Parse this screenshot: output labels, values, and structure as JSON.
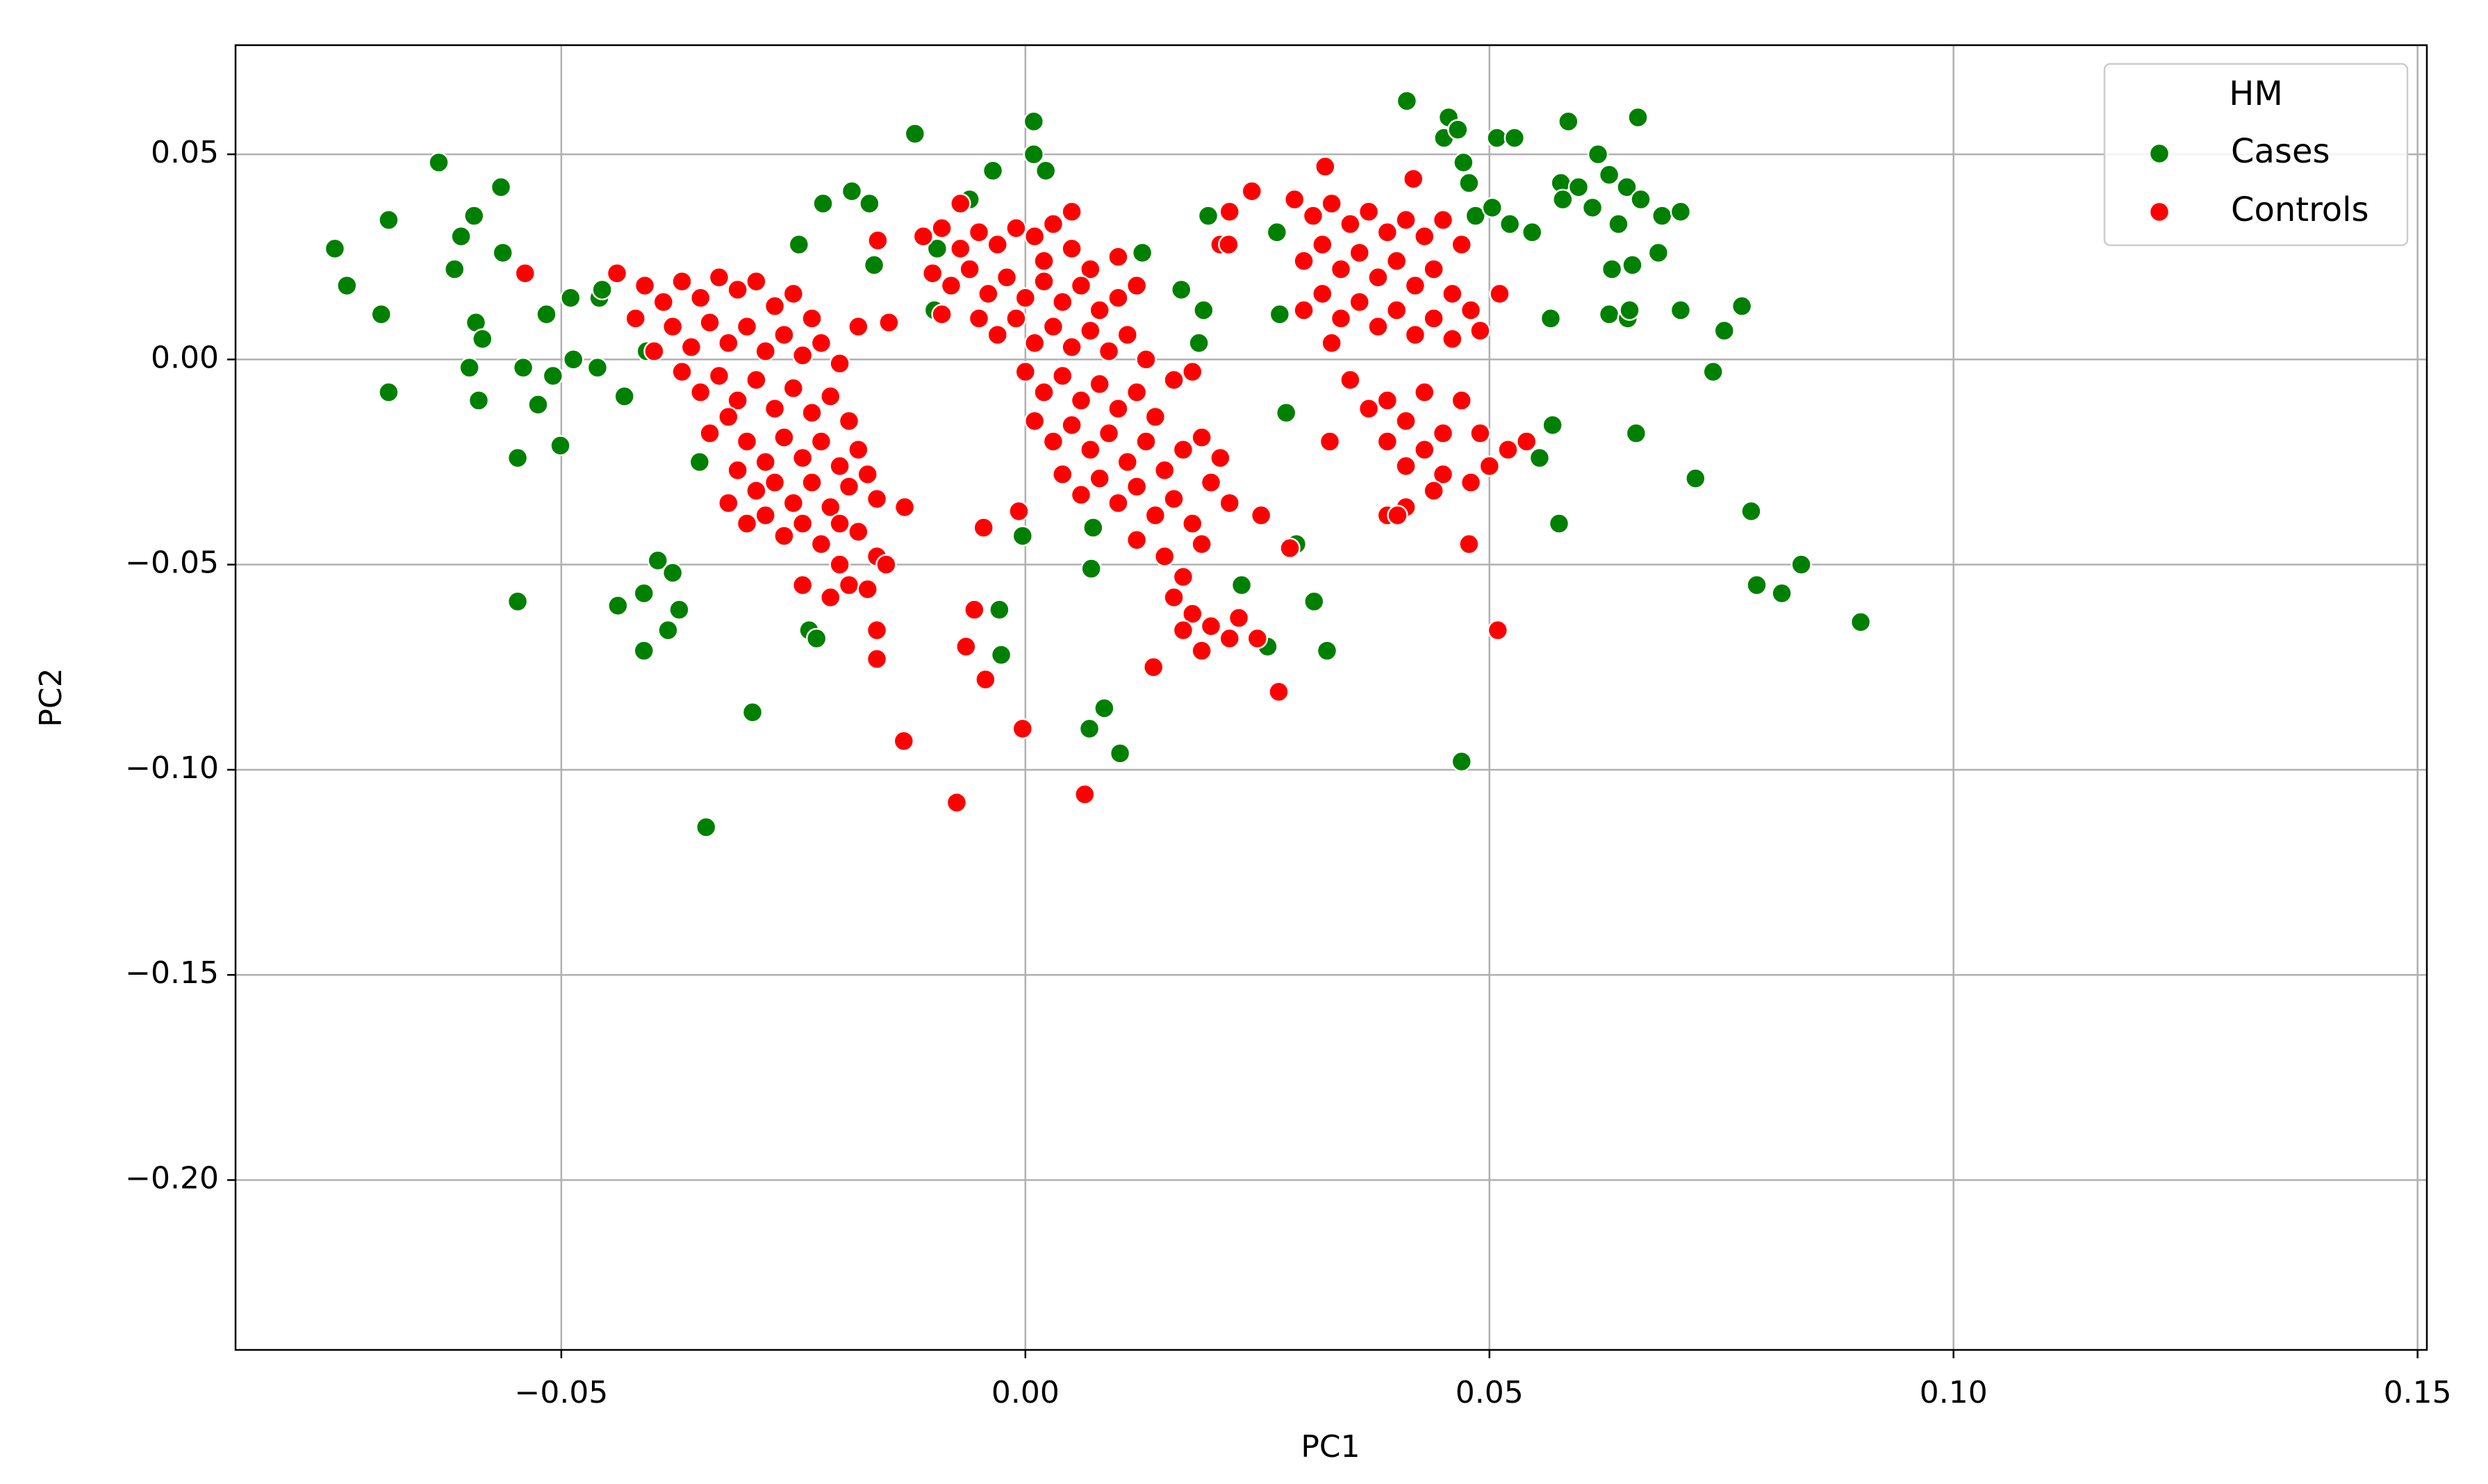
{
  "chart_data": {
    "type": "scatter",
    "x_label": "PC1",
    "y_label": "PC2",
    "xlim": [
      -0.0851,
      0.151
    ],
    "ylim": [
      -0.2414,
      0.0766
    ],
    "xticks": [
      {
        "value": -0.05,
        "label": "−0.05"
      },
      {
        "value": 0,
        "label": "0.00"
      },
      {
        "value": 0.05,
        "label": "0.05"
      },
      {
        "value": 0.1,
        "label": "0.10"
      },
      {
        "value": 0.15,
        "label": "0.15"
      }
    ],
    "yticks": [
      {
        "value": -0.2,
        "label": "−0.20"
      },
      {
        "value": -0.15,
        "label": "−0.15"
      },
      {
        "value": -0.1,
        "label": "−0.10"
      },
      {
        "value": -0.05,
        "label": "−0.05"
      },
      {
        "value": 0,
        "label": "0.00"
      },
      {
        "value": 0.05,
        "label": "0.05"
      }
    ],
    "grid": true,
    "legend_title": "HM",
    "legend_position": "upper-right",
    "series": [
      {
        "name": "Cases",
        "color": "#008000",
        "x": [
          -0.0744,
          -0.0731,
          -0.0694,
          -0.0686,
          -0.0686,
          -0.0632,
          -0.0615,
          -0.0608,
          -0.0594,
          -0.0599,
          -0.0589,
          -0.0592,
          -0.0585,
          -0.0565,
          -0.0563,
          -0.0547,
          -0.0547,
          -0.0541,
          -0.0525,
          -0.0516,
          -0.0509,
          -0.0501,
          -0.049,
          -0.0487,
          -0.0459,
          -0.0461,
          -0.0456,
          -0.0432,
          -0.0439,
          -0.0411,
          -0.0411,
          -0.0408,
          -0.0396,
          -0.0385,
          -0.038,
          -0.0373,
          -0.0351,
          -0.0344,
          -0.0294,
          -0.0244,
          -0.0233,
          -0.0225,
          -0.0218,
          -0.0187,
          -0.0168,
          -0.0163,
          -0.0119,
          -0.0098,
          -0.0095,
          -0.006,
          -0.0035,
          -0.0028,
          -0.0026,
          -0.0003,
          0.0009,
          0.0009,
          0.0022,
          0.0071,
          0.0069,
          0.0073,
          0.0085,
          0.0102,
          0.0126,
          0.0168,
          0.0187,
          0.0197,
          0.0192,
          0.0233,
          0.0261,
          0.0271,
          0.0274,
          0.0281,
          0.0292,
          0.0311,
          0.0325,
          0.0411,
          0.0456,
          0.0451,
          0.0466,
          0.0472,
          0.0478,
          0.0485,
          0.047,
          0.0508,
          0.0527,
          0.0503,
          0.0522,
          0.0546,
          0.0554,
          0.0566,
          0.0568,
          0.0575,
          0.0577,
          0.0585,
          0.0579,
          0.0596,
          0.0611,
          0.0617,
          0.0629,
          0.0632,
          0.0629,
          0.0639,
          0.0648,
          0.0649,
          0.0651,
          0.0654,
          0.066,
          0.0658,
          0.0663,
          0.0682,
          0.0686,
          0.0706,
          0.0706,
          0.0722,
          0.0741,
          0.0753,
          0.0772,
          0.0782,
          0.0788,
          0.0815,
          0.0836,
          0.09
        ],
        "values": [
          0.027,
          0.018,
          0.011,
          0.034,
          -0.008,
          0.048,
          0.022,
          0.03,
          0.035,
          -0.002,
          -0.01,
          0.009,
          0.005,
          0.042,
          0.026,
          -0.024,
          -0.059,
          -0.002,
          -0.011,
          0.011,
          -0.004,
          -0.021,
          0.015,
          0.0,
          0.015,
          -0.002,
          0.017,
          -0.009,
          -0.06,
          -0.057,
          -0.071,
          0.002,
          -0.049,
          -0.066,
          -0.052,
          -0.061,
          -0.025,
          -0.114,
          -0.086,
          0.028,
          -0.066,
          -0.068,
          0.038,
          0.041,
          0.038,
          0.023,
          0.055,
          0.012,
          0.027,
          0.039,
          0.046,
          -0.061,
          -0.072,
          -0.043,
          0.058,
          0.05,
          0.046,
          -0.051,
          -0.09,
          -0.041,
          -0.085,
          -0.096,
          0.026,
          0.017,
          0.004,
          0.035,
          0.012,
          -0.055,
          -0.07,
          0.031,
          0.011,
          -0.013,
          -0.045,
          -0.059,
          -0.071,
          0.063,
          0.059,
          0.054,
          0.056,
          0.048,
          0.043,
          0.035,
          -0.098,
          0.054,
          0.054,
          0.037,
          0.033,
          0.031,
          -0.024,
          0.01,
          -0.016,
          -0.04,
          0.043,
          0.058,
          0.039,
          0.042,
          0.037,
          0.05,
          0.045,
          0.022,
          0.011,
          0.033,
          0.042,
          0.01,
          0.012,
          0.023,
          0.059,
          -0.018,
          0.039,
          0.026,
          0.035,
          0.036,
          0.012,
          -0.029,
          -0.003,
          0.007,
          0.013,
          -0.037,
          -0.055,
          -0.057,
          -0.05,
          -0.064
        ]
      },
      {
        "name": "Controls",
        "color": "#ff0000",
        "x": [
          -0.044,
          -0.041,
          -0.039,
          -0.037,
          -0.035,
          -0.033,
          -0.031,
          -0.029,
          -0.027,
          -0.025,
          -0.023,
          -0.038,
          -0.036,
          -0.034,
          -0.032,
          -0.03,
          -0.028,
          -0.026,
          -0.024,
          -0.022,
          -0.02,
          -0.037,
          -0.035,
          -0.033,
          -0.031,
          -0.029,
          -0.027,
          -0.025,
          -0.023,
          -0.021,
          -0.019,
          -0.034,
          -0.032,
          -0.03,
          -0.028,
          -0.026,
          -0.024,
          -0.022,
          -0.02,
          -0.018,
          -0.031,
          -0.029,
          -0.027,
          -0.025,
          -0.023,
          -0.021,
          -0.019,
          -0.017,
          -0.016,
          -0.032,
          -0.03,
          -0.028,
          -0.026,
          -0.024,
          -0.022,
          -0.02,
          -0.018,
          -0.013,
          -0.02,
          -0.019,
          -0.016,
          -0.017,
          -0.015,
          -0.016,
          -0.016,
          -0.024,
          -0.021,
          -0.018,
          -0.04,
          -0.042,
          -0.011,
          -0.009,
          -0.007,
          -0.005,
          -0.003,
          -0.001,
          0.001,
          0.003,
          0.005,
          0.007,
          -0.01,
          -0.008,
          -0.006,
          -0.004,
          -0.002,
          0.0,
          0.002,
          0.004,
          0.006,
          0.008,
          0.01,
          -0.005,
          -0.003,
          -0.001,
          0.001,
          0.003,
          0.005,
          0.007,
          0.009,
          0.011,
          0.013,
          0.0,
          0.002,
          0.004,
          0.006,
          0.008,
          0.01,
          0.012,
          0.014,
          0.016,
          0.018,
          0.001,
          0.003,
          0.005,
          0.007,
          0.009,
          0.011,
          0.013,
          0.015,
          0.017,
          0.019,
          0.021,
          0.004,
          0.006,
          0.008,
          0.01,
          0.012,
          0.014,
          0.016,
          0.018,
          0.02,
          0.022,
          0.012,
          0.015,
          0.017,
          0.019,
          0.016,
          0.018,
          0.02,
          0.022,
          0.019,
          0.023,
          0.025,
          0.017,
          0.002,
          0.01,
          0.005,
          -0.007,
          0.012,
          -0.009,
          0.029,
          0.031,
          0.033,
          0.035,
          0.037,
          0.039,
          0.041,
          0.043,
          0.045,
          0.047,
          0.03,
          0.032,
          0.034,
          0.036,
          0.038,
          0.04,
          0.042,
          0.044,
          0.046,
          0.048,
          0.03,
          0.032,
          0.034,
          0.036,
          0.038,
          0.04,
          0.042,
          0.044,
          0.046,
          0.049,
          0.033,
          0.035,
          0.037,
          0.039,
          0.041,
          0.043,
          0.045,
          0.039,
          0.041,
          0.043,
          0.045,
          0.048,
          0.05,
          0.052,
          0.054,
          0.049,
          0.047,
          0.039,
          0.041,
          0.044,
          0.022,
          0.021,
          -0.0539,
          -0.0147,
          -0.0159,
          -0.0131,
          -0.0074,
          0.0064,
          -0.0003,
          -0.0064,
          -0.0055,
          -0.0043,
          -0.0045,
          -0.0007,
          0.0273,
          0.0138,
          0.0285,
          0.0254,
          0.0323,
          0.0418,
          0.0511,
          0.0509,
          0.0478,
          0.0401,
          0.0328,
          0.0244,
          0.0219
        ],
        "values": [
          0.021,
          0.018,
          0.014,
          0.019,
          0.015,
          0.02,
          0.017,
          0.019,
          0.013,
          0.016,
          0.01,
          0.008,
          0.003,
          0.009,
          0.004,
          0.008,
          0.002,
          0.006,
          0.001,
          0.004,
          -0.001,
          -0.003,
          -0.008,
          -0.004,
          -0.01,
          -0.005,
          -0.012,
          -0.007,
          -0.013,
          -0.009,
          -0.015,
          -0.018,
          -0.014,
          -0.02,
          -0.025,
          -0.019,
          -0.024,
          -0.02,
          -0.026,
          -0.022,
          -0.027,
          -0.032,
          -0.03,
          -0.035,
          -0.03,
          -0.036,
          -0.031,
          -0.028,
          -0.034,
          -0.035,
          -0.04,
          -0.038,
          -0.043,
          -0.04,
          -0.045,
          -0.04,
          -0.042,
          -0.036,
          -0.05,
          -0.055,
          -0.048,
          -0.056,
          -0.05,
          -0.066,
          -0.073,
          -0.055,
          -0.058,
          0.008,
          0.002,
          0.01,
          0.03,
          0.032,
          0.027,
          0.031,
          0.028,
          0.032,
          0.03,
          0.033,
          0.027,
          0.022,
          0.021,
          0.018,
          0.022,
          0.016,
          0.02,
          0.015,
          0.019,
          0.014,
          0.018,
          0.012,
          0.015,
          0.01,
          0.006,
          0.01,
          0.004,
          0.008,
          0.003,
          0.007,
          0.002,
          0.006,
          0.0,
          -0.003,
          -0.008,
          -0.004,
          -0.01,
          -0.006,
          -0.012,
          -0.008,
          -0.014,
          -0.005,
          -0.003,
          -0.015,
          -0.02,
          -0.016,
          -0.022,
          -0.018,
          -0.025,
          -0.02,
          -0.027,
          -0.022,
          -0.019,
          -0.024,
          -0.028,
          -0.033,
          -0.029,
          -0.035,
          -0.031,
          -0.038,
          -0.034,
          -0.04,
          -0.03,
          -0.035,
          -0.044,
          -0.048,
          -0.053,
          -0.045,
          -0.058,
          -0.062,
          -0.065,
          -0.068,
          -0.071,
          -0.063,
          -0.068,
          -0.066,
          0.024,
          0.025,
          0.036,
          0.038,
          0.018,
          0.011,
          0.039,
          0.035,
          0.038,
          0.033,
          0.036,
          0.031,
          0.034,
          0.03,
          0.034,
          0.028,
          0.024,
          0.028,
          0.022,
          0.026,
          0.02,
          0.024,
          0.018,
          0.022,
          0.016,
          0.012,
          0.012,
          0.016,
          0.01,
          0.014,
          0.008,
          0.012,
          0.006,
          0.01,
          0.005,
          0.007,
          0.004,
          -0.005,
          -0.012,
          -0.01,
          -0.015,
          -0.008,
          -0.018,
          -0.02,
          -0.026,
          -0.022,
          -0.028,
          -0.03,
          -0.026,
          -0.022,
          -0.02,
          -0.018,
          -0.01,
          -0.038,
          -0.036,
          -0.032,
          0.036,
          0.028,
          0.021,
          0.009,
          0.029,
          -0.093,
          -0.108,
          -0.106,
          -0.09,
          -0.07,
          -0.061,
          -0.078,
          -0.041,
          -0.037,
          -0.081,
          -0.075,
          -0.046,
          -0.038,
          0.047,
          0.044,
          0.016,
          -0.066,
          -0.045,
          -0.038,
          -0.02,
          0.041,
          0.028
        ]
      }
    ]
  }
}
